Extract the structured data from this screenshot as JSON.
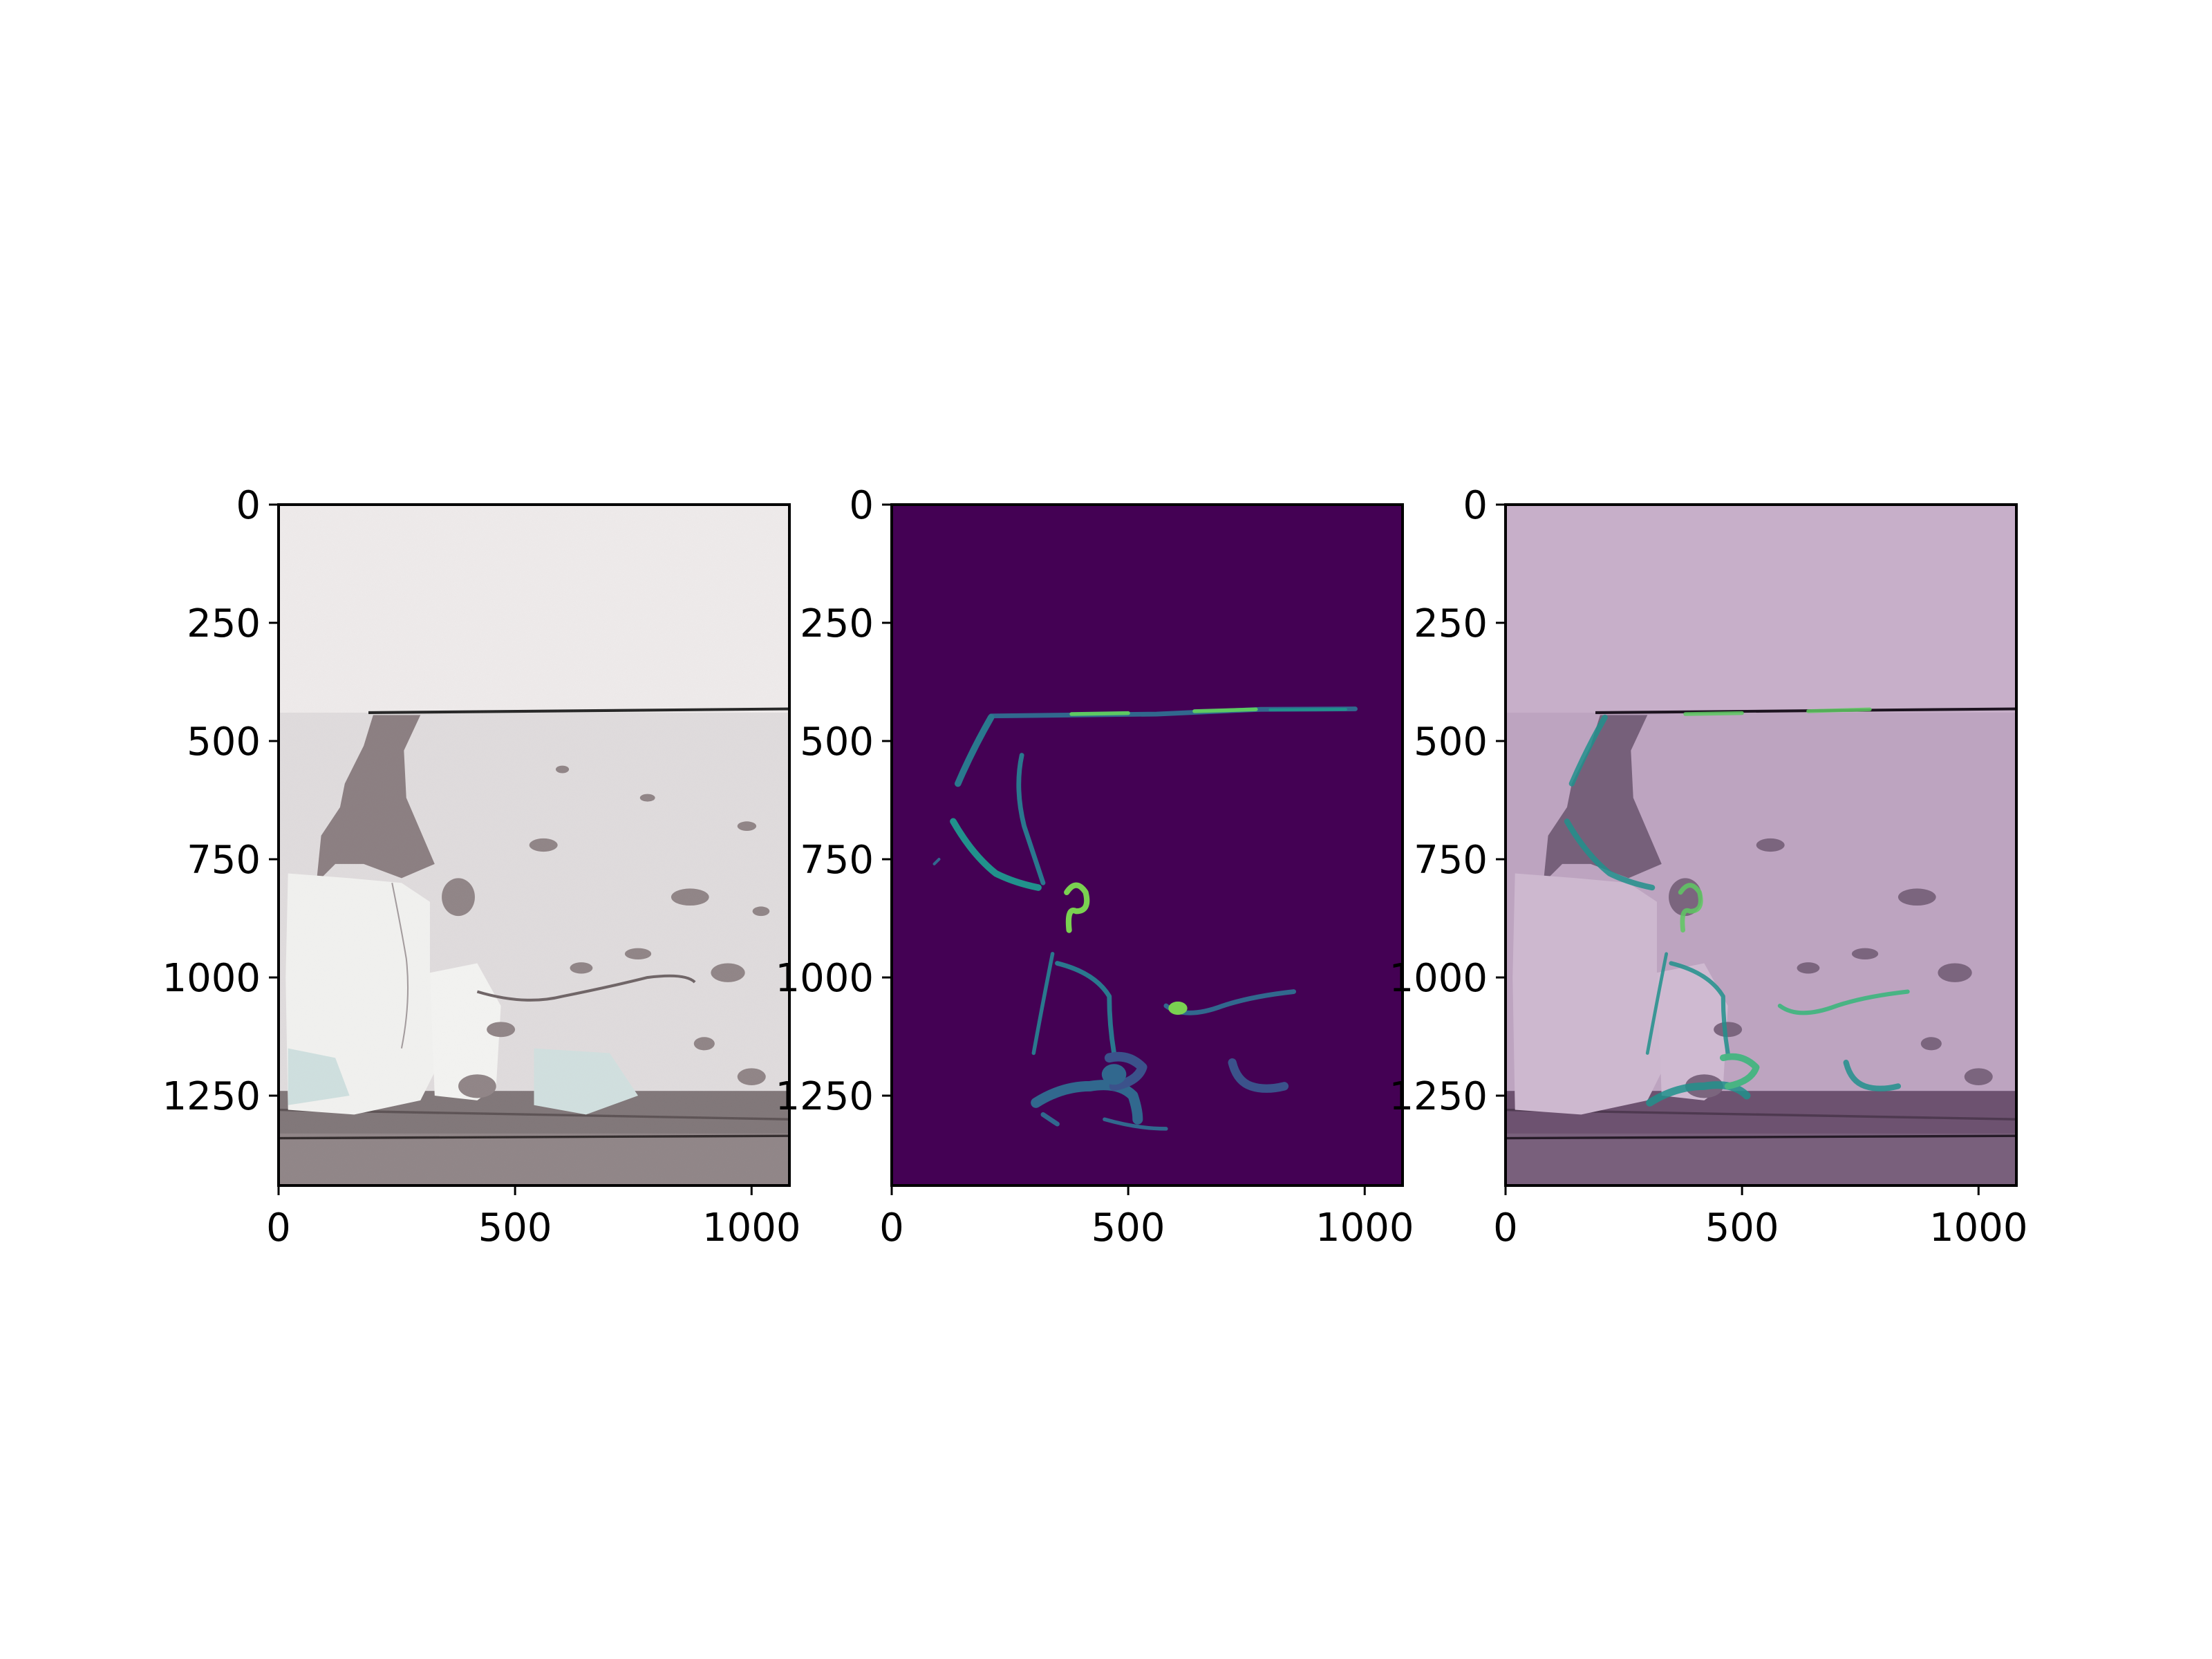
{
  "chart_data": [
    {
      "type": "image",
      "panel": "original",
      "xlim": [
        0,
        1080
      ],
      "ylim": [
        1440,
        0
      ],
      "xticks": [
        0,
        500,
        1000
      ],
      "yticks": [
        0,
        250,
        500,
        750,
        1000,
        1250
      ],
      "xticklabels": [
        "0",
        "500",
        "1000"
      ],
      "yticklabels": [
        "0",
        "250",
        "500",
        "750",
        "1000",
        "1250"
      ]
    },
    {
      "type": "heatmap",
      "panel": "crack-mask",
      "colormap": "viridis",
      "xlim": [
        0,
        1080
      ],
      "ylim": [
        1440,
        0
      ],
      "xticks": [
        0,
        500,
        1000
      ],
      "yticks": [
        0,
        250,
        500,
        750,
        1000,
        1250
      ],
      "xticklabels": [
        "0",
        "500",
        "1000"
      ],
      "yticklabels": [
        "0",
        "250",
        "500",
        "750",
        "1000",
        "1250"
      ]
    },
    {
      "type": "image",
      "panel": "overlay",
      "xlim": [
        0,
        1080
      ],
      "ylim": [
        1440,
        0
      ],
      "xticks": [
        0,
        500,
        1000
      ],
      "yticks": [
        0,
        250,
        500,
        750,
        1000,
        1250
      ],
      "xticklabels": [
        "0",
        "500",
        "1000"
      ],
      "yticklabels": [
        "0",
        "250",
        "500",
        "750",
        "1000",
        "1250"
      ]
    }
  ],
  "colors": {
    "mask_background": "#440154",
    "mask_low": "#31688e",
    "mask_mid": "#21918c",
    "mask_high": "#5ec962",
    "mask_peak": "#b5de2b",
    "wall_light": "#eeeaea",
    "wall_plaster": "#d9d4d6",
    "wall_damage": "#8a7e80",
    "overlay_tint": "#c9a8cf"
  }
}
